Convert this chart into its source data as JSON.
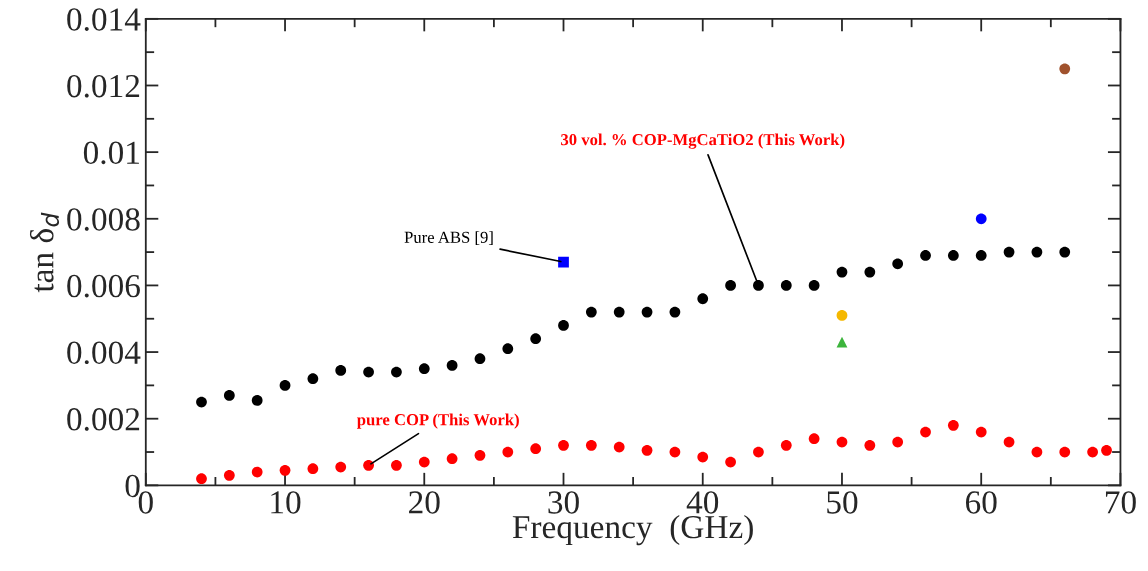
{
  "chart_data": {
    "type": "scatter",
    "xlabel": "Frequency  (GHz)",
    "ylabel": "tan δ$_{d}$",
    "xlim": [
      0,
      70
    ],
    "xticks": [
      0,
      10,
      20,
      30,
      40,
      50,
      60,
      70
    ],
    "ylim": [
      0,
      0.014
    ],
    "yticks": [
      0,
      0.002,
      0.004,
      0.006,
      0.008,
      0.01,
      0.012,
      0.014
    ],
    "grid": false,
    "legend": false,
    "series": [
      {
        "color": "#000000",
        "marker": "circle",
        "x": [
          4,
          6,
          8,
          10,
          12,
          14,
          16,
          18,
          20,
          22,
          24,
          26,
          28,
          30,
          32,
          34,
          36,
          38,
          40,
          42,
          44,
          46,
          48,
          50,
          52,
          54,
          56,
          58,
          60,
          62,
          64,
          66
        ],
        "values": [
          0.0025,
          0.0027,
          0.00255,
          0.003,
          0.0032,
          0.00345,
          0.0034,
          0.0034,
          0.0035,
          0.0036,
          0.0038,
          0.0041,
          0.0044,
          0.0048,
          0.0052,
          0.0052,
          0.0052,
          0.0052,
          0.0056,
          0.006,
          0.006,
          0.006,
          0.006,
          0.0064,
          0.0064,
          0.00665,
          0.0069,
          0.0069,
          0.0069,
          0.007,
          0.007,
          0.007
        ]
      },
      {
        "color": "#ff0000",
        "marker": "circle",
        "x": [
          4,
          6,
          8,
          10,
          12,
          14,
          16,
          18,
          20,
          22,
          24,
          26,
          28,
          30,
          32,
          34,
          36,
          38,
          40,
          42,
          44,
          46,
          48,
          50,
          52,
          54,
          56,
          58,
          60,
          62,
          64,
          66,
          68,
          69
        ],
        "values": [
          0.0002,
          0.0003,
          0.0004,
          0.00045,
          0.0005,
          0.00055,
          0.0006,
          0.0006,
          0.0007,
          0.0008,
          0.0009,
          0.001,
          0.0011,
          0.0012,
          0.0012,
          0.00115,
          0.00105,
          0.001,
          0.00085,
          0.0007,
          0.001,
          0.0012,
          0.0014,
          0.0013,
          0.0012,
          0.0013,
          0.0016,
          0.0018,
          0.0016,
          0.0013,
          0.001,
          0.001,
          0.001,
          0.00105
        ]
      },
      {
        "color": "#0000ff",
        "marker": "square",
        "x": [
          30
        ],
        "values": [
          0.0067
        ]
      },
      {
        "color": "#0000ff",
        "marker": "circle",
        "x": [
          60
        ],
        "values": [
          0.008
        ]
      },
      {
        "color": "#a0522d",
        "marker": "circle",
        "x": [
          66
        ],
        "values": [
          0.0125
        ]
      },
      {
        "color": "#f5b800",
        "marker": "circle",
        "x": [
          50
        ],
        "values": [
          0.0051
        ]
      },
      {
        "color": "#3cb43c",
        "marker": "triangle",
        "x": [
          50
        ],
        "values": [
          0.0043
        ]
      }
    ],
    "annotations": [
      {
        "text": "30 vol. % COP-MgCaTiO2 (This Work)",
        "x": 44,
        "y": 0.006
      },
      {
        "text": "pure COP (This Work)",
        "x": 16,
        "y": 0.0006
      },
      {
        "text": "Pure ABS [9]",
        "x": 30,
        "y": 0.0067
      }
    ]
  }
}
